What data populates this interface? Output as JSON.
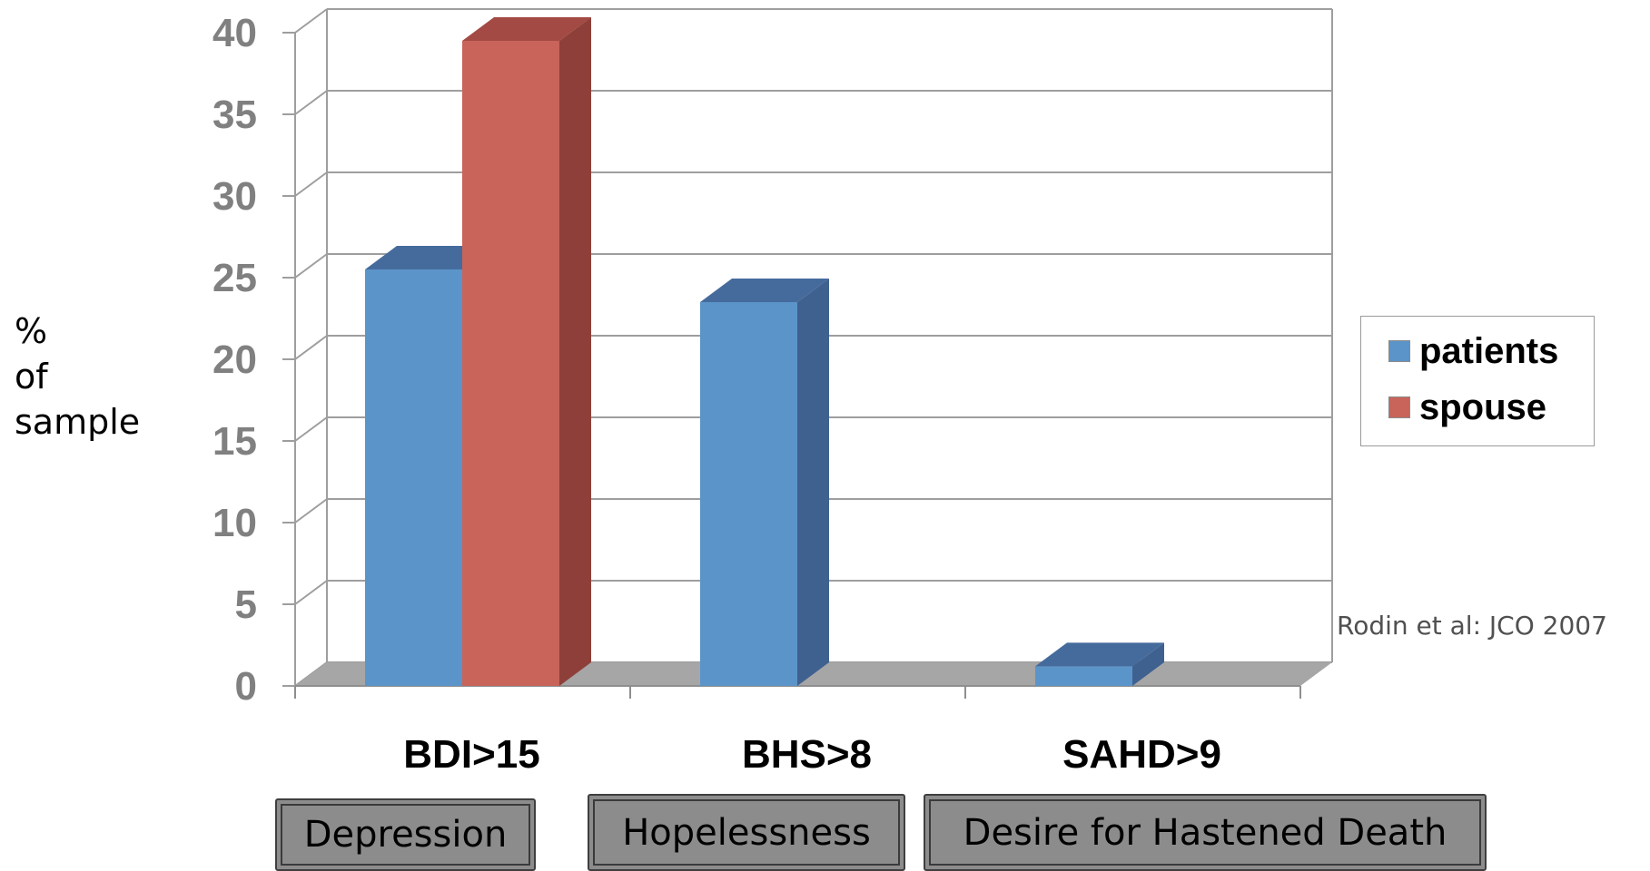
{
  "chart_data": {
    "type": "bar",
    "style": "3d-clustered-column",
    "categories": [
      "BDI>15",
      "BHS>8",
      "SAHD>9"
    ],
    "series": [
      {
        "name": "patients",
        "values": [
          25.5,
          23.5,
          1.2
        ],
        "color": "#5b94c9",
        "side_color": "#3f6190",
        "top_color": "#456b9c"
      },
      {
        "name": "spouse",
        "values": [
          39.5,
          null,
          null
        ],
        "color": "#c8645a",
        "side_color": "#8e3f39",
        "top_color": "#a24a43"
      }
    ],
    "ylim": [
      0,
      40
    ],
    "yticks": [
      0,
      5,
      10,
      15,
      20,
      25,
      30,
      35,
      40
    ],
    "ylabel": [
      "%",
      "of",
      "sample"
    ],
    "legend_position": "right",
    "grid": true,
    "annotation": "Rodin et al: JCO  2007"
  },
  "groups": [
    "Depression",
    "Hopelessness",
    "Desire for Hastened Death"
  ],
  "colors": {
    "floor": "#a6a6a6",
    "gridline": "#9e9e9e",
    "axis_text": "#808080",
    "group_box": "#8c8c8c"
  }
}
